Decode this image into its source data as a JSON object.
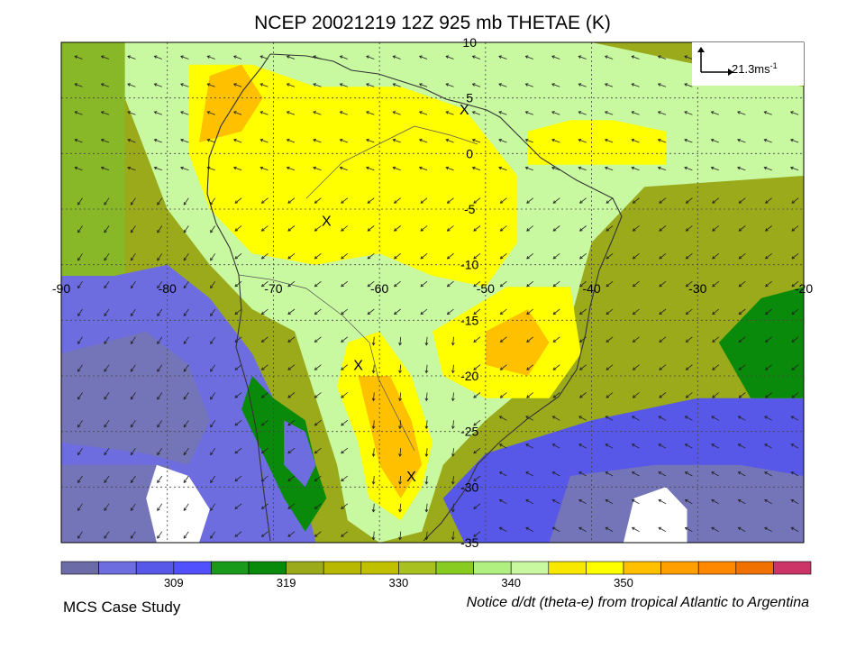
{
  "title": "NCEP 20021219 12Z 925 mb THETAE (K)",
  "footer": {
    "left": "MCS Case Study",
    "right": "Notice d/dt (theta-e) from tropical Atlantic to Argentina"
  },
  "vector_reference": {
    "label": "21.3ms",
    "exponent": "-1"
  },
  "chart_data": {
    "type": "heatmap",
    "title": "NCEP 20021219 12Z 925 mb THETAE (K)",
    "x_axis": {
      "range": [
        -90,
        -20
      ],
      "ticks": [
        -90,
        -80,
        -70,
        -60,
        -50,
        -40,
        -30,
        -20
      ]
    },
    "y_axis": {
      "range": [
        -35,
        10
      ],
      "ticks": [
        10,
        5,
        0,
        -5,
        -10,
        -15,
        -20,
        -25,
        -30,
        -35
      ]
    },
    "grid": true,
    "colorbar": {
      "labels": [
        309,
        319,
        330,
        340,
        350
      ],
      "colors": [
        "#6b6ba8",
        "#6d6de0",
        "#5858e8",
        "#5050ff",
        "#1a9a1a",
        "#0a8a0a",
        "#9aaa1a",
        "#b8b800",
        "#c0c000",
        "#a8c020",
        "#88cc22",
        "#b0f080",
        "#c8f8a0",
        "#f8e800",
        "#ffff00",
        "#ffc000",
        "#ffa000",
        "#ff8800",
        "#f07000",
        "#cc3366"
      ]
    },
    "markers": [
      {
        "label": "X",
        "lon": -52,
        "lat": 4
      },
      {
        "label": "X",
        "lon": -65,
        "lat": -6
      },
      {
        "label": "X",
        "lon": -62,
        "lat": -19
      },
      {
        "label": "X",
        "lon": -57,
        "lat": -29
      }
    ],
    "regions": [
      {
        "level": 310,
        "color": "#6d6de0",
        "poly": [
          [
            -90,
            -11
          ],
          [
            -85,
            -11
          ],
          [
            -80,
            -10
          ],
          [
            -76,
            -13
          ],
          [
            -72,
            -18
          ],
          [
            -70,
            -22
          ],
          [
            -69,
            -27
          ],
          [
            -67,
            -31
          ],
          [
            -66,
            -35
          ],
          [
            -90,
            -35
          ]
        ]
      },
      {
        "level": 308,
        "color": "#7474b8",
        "poly": [
          [
            -90,
            -18
          ],
          [
            -82,
            -16
          ],
          [
            -78,
            -19
          ],
          [
            -76,
            -24
          ],
          [
            -78,
            -28
          ],
          [
            -82,
            -27
          ],
          [
            -90,
            -26
          ]
        ]
      },
      {
        "level": 308,
        "color": "#7474b8",
        "poly": [
          [
            -90,
            -28
          ],
          [
            -80,
            -28
          ],
          [
            -77,
            -31
          ],
          [
            -77,
            -35
          ],
          [
            -90,
            -35
          ]
        ]
      },
      {
        "level": 305,
        "color": "#ffffff",
        "poly": [
          [
            -81,
            -28
          ],
          [
            -78,
            -29
          ],
          [
            -76,
            -32
          ],
          [
            -77,
            -35
          ],
          [
            -81,
            -35
          ],
          [
            -82,
            -31
          ]
        ]
      },
      {
        "level": 319,
        "color": "#0a8a0a",
        "poly": [
          [
            -72,
            -20
          ],
          [
            -70,
            -22
          ],
          [
            -67,
            -24
          ],
          [
            -66,
            -28
          ],
          [
            -65,
            -31
          ],
          [
            -67,
            -34
          ],
          [
            -69,
            -31
          ],
          [
            -71,
            -27
          ],
          [
            -73,
            -23
          ]
        ]
      },
      {
        "level": 312,
        "color": "#6d6de0",
        "poly": [
          [
            -69,
            -24
          ],
          [
            -67,
            -25
          ],
          [
            -66,
            -28
          ],
          [
            -67,
            -30
          ],
          [
            -69,
            -28
          ]
        ]
      },
      {
        "level": 312,
        "color": "#5858e8",
        "poly": [
          [
            -50,
            -27
          ],
          [
            -40,
            -24
          ],
          [
            -30,
            -22
          ],
          [
            -20,
            -22
          ],
          [
            -20,
            -35
          ],
          [
            -52,
            -35
          ],
          [
            -54,
            -31
          ]
        ]
      },
      {
        "level": 308,
        "color": "#7474b8",
        "poly": [
          [
            -42,
            -29
          ],
          [
            -34,
            -28
          ],
          [
            -26,
            -28
          ],
          [
            -20,
            -29
          ],
          [
            -20,
            -35
          ],
          [
            -44,
            -35
          ]
        ]
      },
      {
        "level": 305,
        "color": "#ffffff",
        "poly": [
          [
            -36,
            -31
          ],
          [
            -33,
            -30
          ],
          [
            -31,
            -32
          ],
          [
            -31,
            -35
          ],
          [
            -37,
            -35
          ]
        ]
      },
      {
        "level": 325,
        "color": "#0a8a0a",
        "poly": [
          [
            -28,
            -17
          ],
          [
            -24,
            -13
          ],
          [
            -20,
            -12
          ],
          [
            -20,
            -22
          ],
          [
            -25,
            -22
          ]
        ]
      },
      {
        "level": 340,
        "color": "#c8f8a0",
        "poly": [
          [
            -84,
            10
          ],
          [
            -70,
            10
          ],
          [
            -58,
            10
          ],
          [
            -40,
            10
          ],
          [
            -30,
            8
          ],
          [
            -20,
            6
          ],
          [
            -20,
            -2
          ],
          [
            -35,
            -3
          ],
          [
            -40,
            -8
          ],
          [
            -42,
            -15
          ],
          [
            -45,
            -20
          ],
          [
            -50,
            -24
          ],
          [
            -54,
            -28
          ],
          [
            -56,
            -34
          ],
          [
            -60,
            -35
          ],
          [
            -63,
            -33
          ],
          [
            -64,
            -28
          ],
          [
            -66,
            -22
          ],
          [
            -68,
            -16
          ],
          [
            -72,
            -14
          ],
          [
            -76,
            -10
          ],
          [
            -80,
            -5
          ],
          [
            -82,
            0
          ],
          [
            -84,
            5
          ]
        ]
      },
      {
        "level": 344,
        "color": "#ffff00",
        "poly": [
          [
            -78,
            8
          ],
          [
            -72,
            8
          ],
          [
            -66,
            6
          ],
          [
            -58,
            6
          ],
          [
            -52,
            4
          ],
          [
            -47,
            -2
          ],
          [
            -47,
            -8
          ],
          [
            -50,
            -12
          ],
          [
            -55,
            -11
          ],
          [
            -60,
            -9
          ],
          [
            -66,
            -10
          ],
          [
            -72,
            -9
          ],
          [
            -76,
            -5
          ],
          [
            -78,
            0
          ]
        ]
      },
      {
        "level": 344,
        "color": "#ffff00",
        "poly": [
          [
            -48,
            -12
          ],
          [
            -42,
            -12
          ],
          [
            -41,
            -18
          ],
          [
            -44,
            -22
          ],
          [
            -50,
            -22
          ],
          [
            -54,
            -20
          ],
          [
            -55,
            -16
          ]
        ]
      },
      {
        "level": 344,
        "color": "#ffff00",
        "poly": [
          [
            -46,
            2
          ],
          [
            -42,
            3
          ],
          [
            -38,
            3
          ],
          [
            -33,
            2
          ],
          [
            -33,
            -1
          ],
          [
            -40,
            -1
          ],
          [
            -46,
            -1
          ]
        ]
      },
      {
        "level": 344,
        "color": "#ffff00",
        "poly": [
          [
            -63,
            -17
          ],
          [
            -60,
            -16
          ],
          [
            -57,
            -20
          ],
          [
            -55,
            -26
          ],
          [
            -56,
            -30
          ],
          [
            -58,
            -33
          ],
          [
            -61,
            -31
          ],
          [
            -62,
            -26
          ],
          [
            -64,
            -21
          ]
        ]
      },
      {
        "level": 348,
        "color": "#ffc000",
        "poly": [
          [
            -62,
            -20
          ],
          [
            -59,
            -20
          ],
          [
            -57,
            -24
          ],
          [
            -56,
            -28
          ],
          [
            -58,
            -31
          ],
          [
            -60,
            -28
          ],
          [
            -61,
            -24
          ]
        ]
      },
      {
        "level": 348,
        "color": "#ffc000",
        "poly": [
          [
            -76,
            7
          ],
          [
            -73,
            8
          ],
          [
            -71,
            5
          ],
          [
            -73,
            2
          ],
          [
            -77,
            1
          ]
        ]
      },
      {
        "level": 348,
        "color": "#ffc000",
        "poly": [
          [
            -50,
            -16
          ],
          [
            -46,
            -14
          ],
          [
            -44,
            -17
          ],
          [
            -46,
            -20
          ],
          [
            -50,
            -19
          ]
        ]
      },
      {
        "level": 340,
        "color": "#c8f8a0",
        "poly": [
          [
            -79,
            -2
          ],
          [
            -78,
            -3
          ],
          [
            -76,
            -6
          ],
          [
            -76,
            -8
          ],
          [
            -77,
            -7
          ],
          [
            -78,
            -5
          ]
        ]
      }
    ]
  }
}
